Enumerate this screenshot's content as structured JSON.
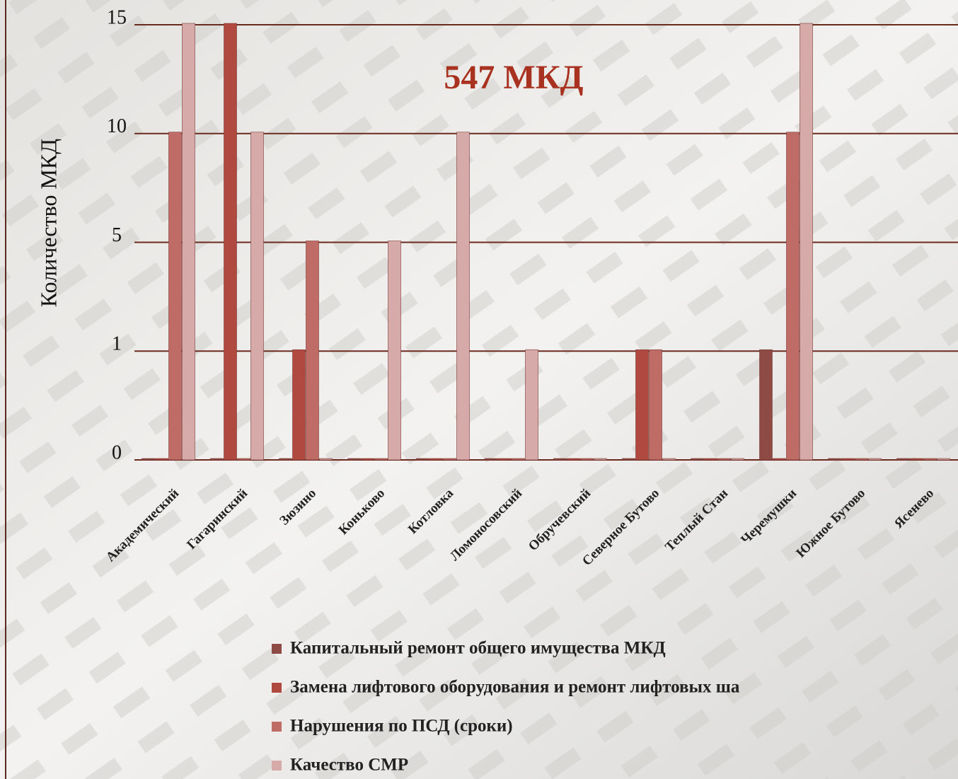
{
  "chart_data": {
    "type": "bar",
    "title": "547 МКД",
    "y_label": "Количество МКД",
    "categories": [
      "Академический",
      "Гагаринский",
      "Зюзино",
      "Коньково",
      "Котловка",
      "Ломоносовский",
      "Обручевский",
      "Северное Бутово",
      "Теплый Стан",
      "Черемушки",
      "Южное Бутово",
      "Ясенево"
    ],
    "series": [
      {
        "name": "Капитальный ремонт общего имущества МКД",
        "color": "#8e4a44",
        "values": [
          0,
          0,
          0,
          0,
          0,
          0,
          0,
          0,
          0,
          1,
          0,
          0
        ]
      },
      {
        "name": "Замена лифтового оборудования и ремонт лифтовых ша",
        "color": "#b04a40",
        "values": [
          0,
          15,
          1,
          0,
          0,
          0,
          0,
          1,
          0,
          0,
          0,
          0
        ]
      },
      {
        "name": "Нарушения по ПСД (сроки)",
        "color": "#bf6c66",
        "values": [
          10,
          0,
          5,
          0,
          0,
          0,
          0,
          1,
          0,
          10,
          0,
          0
        ]
      },
      {
        "name": "Качество СМР",
        "color": "#d6aaa8",
        "values": [
          15,
          10,
          0,
          5,
          10,
          1,
          0,
          0,
          0,
          15,
          0,
          0
        ]
      }
    ],
    "ylim": [
      0,
      15
    ],
    "yticks": [
      0,
      1,
      5,
      10,
      15
    ],
    "grid": true,
    "legend": "bottom"
  }
}
